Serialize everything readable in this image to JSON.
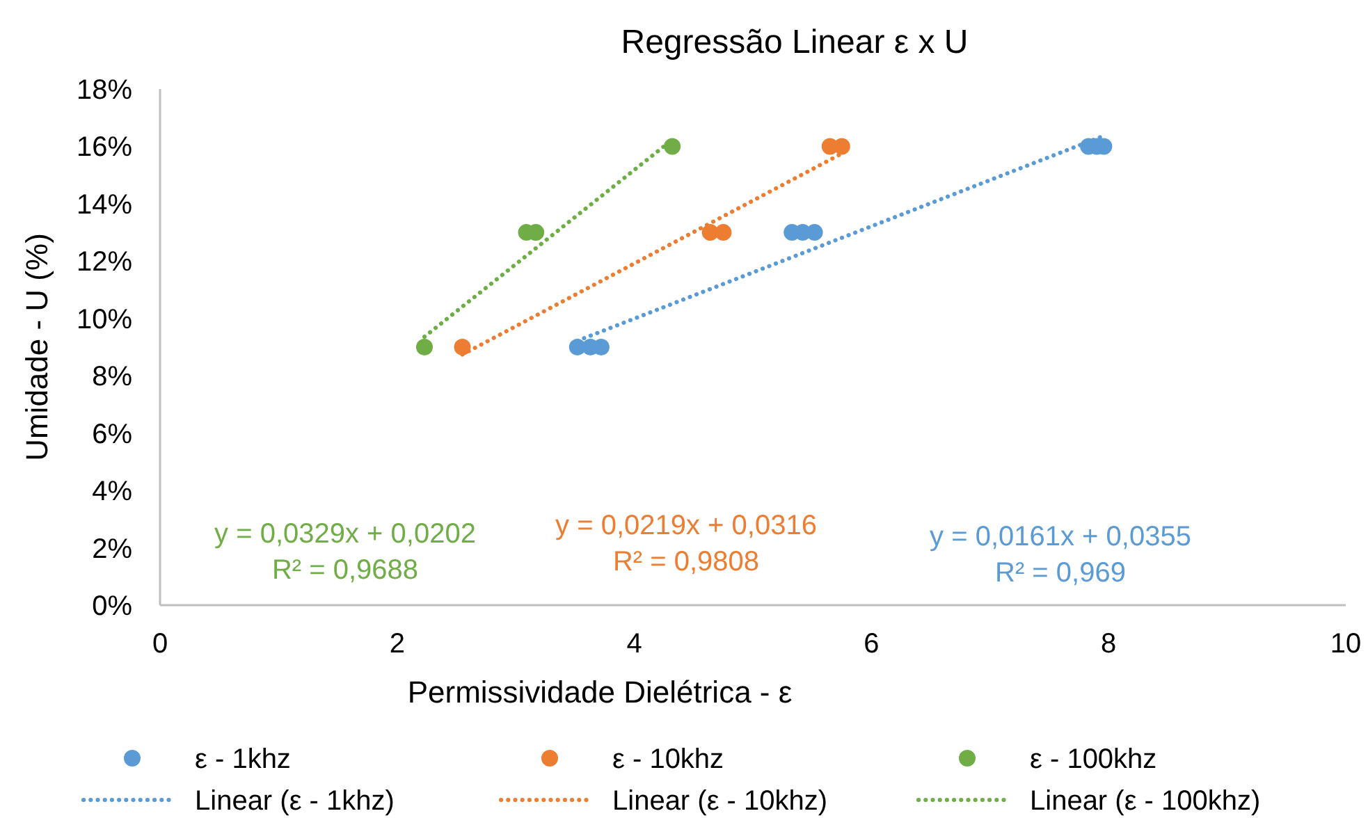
{
  "chart_data": {
    "type": "scatter",
    "title": "Regressão Linear ε x U",
    "xlabel": "Permissividade Dielétrica  -  ε",
    "ylabel": "Umidade - U (%)",
    "xlim": [
      0,
      10
    ],
    "xticks": [
      0,
      2,
      4,
      6,
      8,
      10
    ],
    "ylim": [
      0,
      18
    ],
    "yticks": [
      {
        "value": 0,
        "label": "0%"
      },
      {
        "value": 2,
        "label": "2%"
      },
      {
        "value": 4,
        "label": "4%"
      },
      {
        "value": 6,
        "label": "6%"
      },
      {
        "value": 8,
        "label": "8%"
      },
      {
        "value": 10,
        "label": "10%"
      },
      {
        "value": 12,
        "label": "12%"
      },
      {
        "value": 14,
        "label": "14%"
      },
      {
        "value": 16,
        "label": "16%"
      },
      {
        "value": 18,
        "label": "18%"
      }
    ],
    "grid": false,
    "legend": "bottom",
    "marker": "circle",
    "series": [
      {
        "name": "ε - 1khz",
        "color": "#5b9bd5",
        "x": [
          3.52,
          3.63,
          3.72,
          5.33,
          5.42,
          5.52,
          7.83,
          7.9,
          7.96
        ],
        "values": [
          9,
          9,
          9,
          13,
          13,
          13,
          16,
          16,
          16
        ]
      },
      {
        "name": "ε - 10khz",
        "color": "#ed7d31",
        "x": [
          2.55,
          4.64,
          4.75,
          5.65,
          5.75
        ],
        "values": [
          9,
          13,
          13,
          16,
          16
        ]
      },
      {
        "name": "ε - 100khz",
        "color": "#70ad47",
        "x": [
          2.23,
          3.09,
          3.17,
          4.32
        ],
        "values": [
          9,
          13,
          13,
          16
        ]
      },
      {
        "name": "Linear (ε - 1khz)",
        "type": "line",
        "marker": "none",
        "line_style": "dotted",
        "color": "#5b9bd5",
        "x": [
          3.52,
          7.96
        ],
        "values": [
          9.22,
          16.37
        ]
      },
      {
        "name": "Linear (ε - 10khz)",
        "type": "line",
        "marker": "none",
        "line_style": "dotted",
        "color": "#ed7d31",
        "x": [
          2.55,
          5.75
        ],
        "values": [
          8.74,
          15.75
        ]
      },
      {
        "name": "Linear (ε - 100khz)",
        "type": "line",
        "marker": "none",
        "line_style": "dotted",
        "color": "#70ad47",
        "x": [
          2.23,
          4.32
        ],
        "values": [
          9.36,
          16.23
        ]
      }
    ],
    "annotations": [
      "y = 0,0329x + 0,0202",
      "R² = 0,9688",
      "y = 0,0219x + 0,0316",
      "R² = 0,9808",
      "y = 0,0161x + 0,0355",
      "R² = 0,969"
    ]
  }
}
